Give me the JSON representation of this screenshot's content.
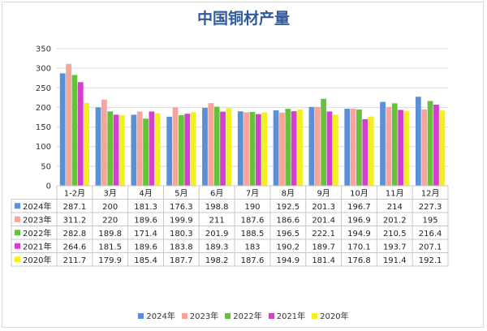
{
  "chart_data": {
    "type": "bar",
    "title": "中国铜材产量",
    "categories": [
      "1-2月",
      "3月",
      "4月",
      "5月",
      "6月",
      "7月",
      "8月",
      "9月",
      "10月",
      "11月",
      "12月"
    ],
    "yticks": [
      "0",
      "50",
      "100",
      "150",
      "200",
      "250",
      "300",
      "350"
    ],
    "ylim": [
      0,
      350
    ],
    "grid": true,
    "legend_position": "bottom",
    "data_table": true,
    "series": [
      {
        "name": "2024年",
        "color": "#5b8fd6",
        "values": [
          287.1,
          200,
          181.3,
          176.3,
          198.8,
          190,
          192.5,
          201.3,
          196.7,
          214,
          227.3
        ],
        "labels": [
          "287.1",
          "200",
          "181.3",
          "176.3",
          "198.8",
          "190",
          "192.5",
          "201.3",
          "196.7",
          "214",
          "227.3"
        ]
      },
      {
        "name": "2023年",
        "color": "#f7a59a",
        "values": [
          311.2,
          220,
          189.6,
          199.9,
          211,
          187.6,
          186.6,
          201.4,
          196.9,
          201.2,
          195
        ],
        "labels": [
          "311.2",
          "220",
          "189.6",
          "199.9",
          "211",
          "187.6",
          "186.6",
          "201.4",
          "196.9",
          "201.2",
          "195"
        ]
      },
      {
        "name": "2022年",
        "color": "#66c23a",
        "values": [
          282.8,
          189.8,
          171.4,
          180.3,
          201.9,
          188.5,
          196.5,
          222.1,
          194.9,
          210.5,
          216.4
        ],
        "labels": [
          "282.8",
          "189.8",
          "171.4",
          "180.3",
          "201.9",
          "188.5",
          "196.5",
          "222.1",
          "194.9",
          "210.5",
          "216.4"
        ]
      },
      {
        "name": "2021年",
        "color": "#d63fce",
        "values": [
          264.6,
          181.5,
          189.6,
          183.8,
          189.3,
          183,
          190.2,
          189.7,
          170.1,
          193.7,
          207.1
        ],
        "labels": [
          "264.6",
          "181.5",
          "189.6",
          "183.8",
          "189.3",
          "183",
          "190.2",
          "189.7",
          "170.1",
          "193.7",
          "207.1"
        ]
      },
      {
        "name": "2020年",
        "color": "#f4f01f",
        "values": [
          211.7,
          179.9,
          185.4,
          187.7,
          198.2,
          187.6,
          194.9,
          181.4,
          176.8,
          191.4,
          192.1
        ],
        "labels": [
          "211.7",
          "179.9",
          "185.4",
          "187.7",
          "198.2",
          "187.6",
          "194.9",
          "181.4",
          "176.8",
          "191.4",
          "192.1"
        ]
      }
    ]
  }
}
